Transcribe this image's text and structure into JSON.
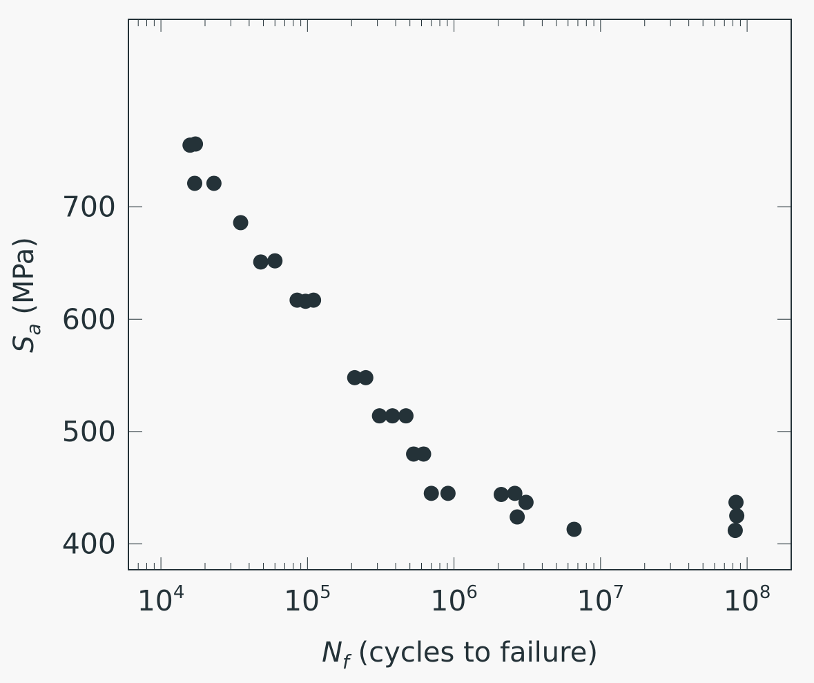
{
  "chart_data": {
    "type": "scatter",
    "x_scale": "log",
    "xlim": [
      6000,
      200000000
    ],
    "ylim": [
      377,
      867
    ],
    "x_ticks": [
      {
        "base": "10",
        "exp": "4",
        "value": 10000
      },
      {
        "base": "10",
        "exp": "5",
        "value": 100000
      },
      {
        "base": "10",
        "exp": "6",
        "value": 1000000
      },
      {
        "base": "10",
        "exp": "7",
        "value": 10000000
      },
      {
        "base": "10",
        "exp": "8",
        "value": 100000000
      }
    ],
    "y_ticks": [
      "400",
      "500",
      "600",
      "700"
    ],
    "xlabel": {
      "symbol": "N",
      "subscript": "f",
      "text": " (cycles to failure)"
    },
    "ylabel": {
      "symbol": "S",
      "subscript": "a",
      "text": " (MPa)"
    },
    "marker_color": "#243238",
    "axis_color": "#243238",
    "background": "#f8f8f8",
    "grid": false,
    "legend": "none",
    "series": [
      {
        "points": [
          {
            "x": 15800,
            "y": 755
          },
          {
            "x": 17200,
            "y": 756
          },
          {
            "x": 17000,
            "y": 721
          },
          {
            "x": 23000,
            "y": 721
          },
          {
            "x": 35000,
            "y": 686
          },
          {
            "x": 48000,
            "y": 651
          },
          {
            "x": 60000,
            "y": 652
          },
          {
            "x": 85000,
            "y": 617
          },
          {
            "x": 97000,
            "y": 616
          },
          {
            "x": 110000,
            "y": 617
          },
          {
            "x": 210000,
            "y": 548
          },
          {
            "x": 250000,
            "y": 548
          },
          {
            "x": 310000,
            "y": 514
          },
          {
            "x": 380000,
            "y": 514
          },
          {
            "x": 470000,
            "y": 514
          },
          {
            "x": 530000,
            "y": 480
          },
          {
            "x": 620000,
            "y": 480
          },
          {
            "x": 700000,
            "y": 445
          },
          {
            "x": 910000,
            "y": 445
          },
          {
            "x": 2100000,
            "y": 444
          },
          {
            "x": 2600000,
            "y": 445
          },
          {
            "x": 2700000,
            "y": 424
          },
          {
            "x": 3100000,
            "y": 437
          },
          {
            "x": 6600000,
            "y": 413
          },
          {
            "x": 84000000,
            "y": 437
          },
          {
            "x": 85000000,
            "y": 425
          },
          {
            "x": 83000000,
            "y": 412
          }
        ]
      }
    ]
  }
}
